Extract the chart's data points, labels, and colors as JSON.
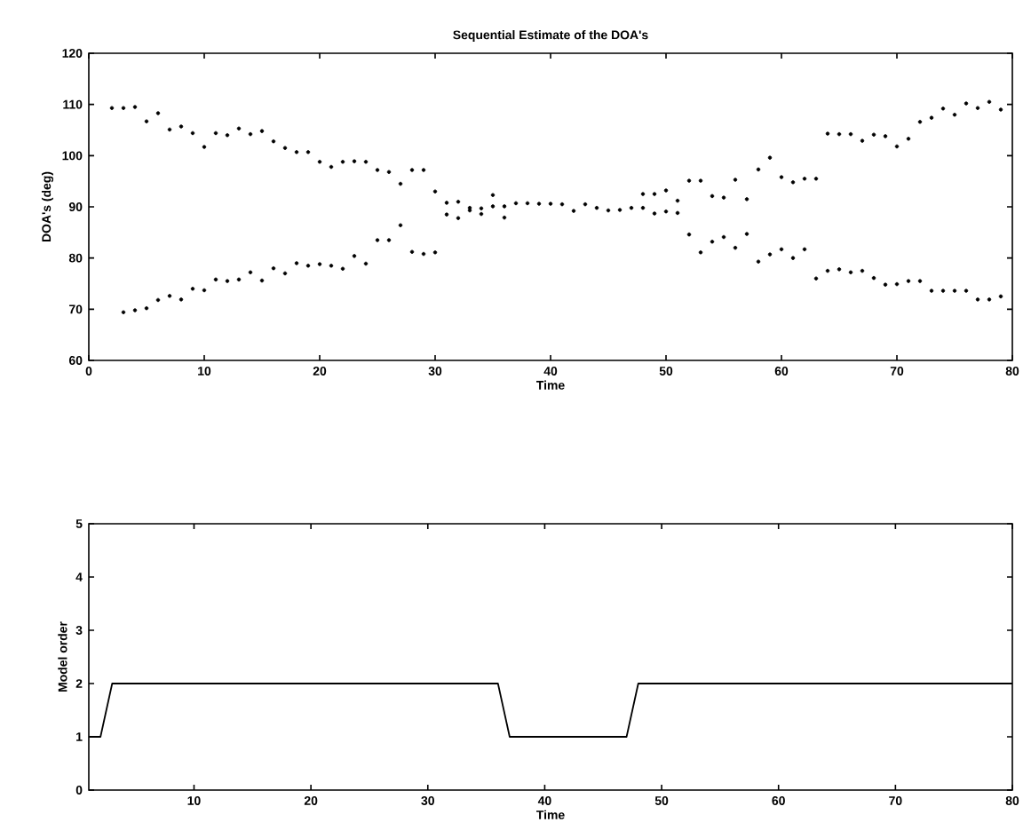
{
  "chart_data": [
    {
      "type": "scatter",
      "title": "Sequential Estimate of the DOA's",
      "xlabel": "Time",
      "ylabel": "DOA's (deg)",
      "xlim": [
        0,
        80
      ],
      "ylim": [
        60,
        120
      ],
      "xticks": [
        0,
        10,
        20,
        30,
        40,
        50,
        60,
        70,
        80
      ],
      "yticks": [
        60,
        70,
        80,
        90,
        100,
        110,
        120
      ],
      "marker": "circle",
      "grid": false,
      "x": [
        2,
        3,
        4,
        5,
        6,
        7,
        8,
        9,
        10,
        11,
        12,
        13,
        14,
        15,
        16,
        17,
        18,
        19,
        20,
        21,
        22,
        23,
        24,
        25,
        26,
        27,
        28,
        29,
        30,
        31,
        32,
        33,
        34,
        35,
        36,
        37,
        38,
        39,
        40,
        41,
        42,
        43,
        44,
        45,
        46,
        47,
        48,
        49,
        50,
        51,
        52,
        53,
        54,
        55,
        56,
        57,
        58,
        59,
        60,
        61,
        62,
        63,
        64,
        65,
        66,
        67,
        68,
        69,
        70,
        71,
        72,
        73,
        74,
        75,
        76,
        77,
        78,
        79
      ],
      "series": [
        {
          "color": "#000000",
          "values": [
            109.3,
            109.3,
            109.5,
            106.7,
            108.3,
            105.1,
            105.7,
            104.4,
            101.7,
            104.4,
            104.0,
            105.3,
            104.2,
            104.8,
            102.8,
            101.5,
            100.7,
            100.7,
            98.8,
            97.8,
            98.8,
            98.9,
            98.8,
            97.2,
            96.8,
            94.5,
            97.2,
            97.2,
            93.0,
            90.8,
            91.0,
            89.8,
            89.7,
            92.3,
            90.1,
            90.7,
            90.7,
            90.6,
            90.6,
            90.5,
            89.2,
            90.5,
            89.8,
            89.3,
            89.4,
            89.8,
            92.5,
            92.5,
            93.2,
            91.2,
            95.1,
            95.1,
            92.1,
            91.8,
            95.3,
            91.5,
            97.3,
            99.6,
            95.8,
            94.8,
            95.5,
            95.5,
            104.3,
            104.2,
            104.2,
            102.9,
            104.1,
            103.8,
            101.8,
            103.3,
            106.6,
            107.4,
            109.2,
            108.0,
            110.2,
            109.3,
            110.5,
            109.0
          ]
        },
        {
          "color": "#000000",
          "values": [
            null,
            69.4,
            69.8,
            70.2,
            71.8,
            72.6,
            71.9,
            74.0,
            73.7,
            75.8,
            75.5,
            75.8,
            77.2,
            75.6,
            78.0,
            77.0,
            79.0,
            78.5,
            78.8,
            78.5,
            77.9,
            80.4,
            78.9,
            83.5,
            83.5,
            86.4,
            81.2,
            80.8,
            81.1,
            88.5,
            87.8,
            89.3,
            88.6,
            90.1,
            87.9,
            null,
            null,
            null,
            null,
            null,
            null,
            null,
            null,
            null,
            null,
            null,
            89.8,
            88.7,
            89.1,
            88.8,
            84.6,
            81.1,
            83.2,
            84.1,
            82.0,
            84.7,
            79.3,
            80.7,
            81.7,
            80.0,
            81.7,
            76.0,
            77.5,
            77.8,
            77.2,
            77.5,
            76.1,
            74.8,
            74.9,
            75.5,
            75.5,
            73.6,
            73.6,
            73.6,
            73.6,
            71.9,
            71.9,
            72.5
          ]
        }
      ]
    },
    {
      "type": "line",
      "xlabel": "Time",
      "ylabel": "Model order",
      "xlim": [
        1,
        80
      ],
      "ylim": [
        0,
        5
      ],
      "xticks": [
        10,
        20,
        30,
        40,
        50,
        60,
        70,
        80
      ],
      "yticks": [
        0,
        1,
        2,
        3,
        4,
        5
      ],
      "marker": "none",
      "line_style": "solid",
      "grid": false,
      "x": [
        1,
        2,
        3,
        36,
        37,
        47,
        48,
        80
      ],
      "series": [
        {
          "color": "#000000",
          "values": [
            1,
            1,
            2,
            2,
            1,
            1,
            2,
            2
          ]
        }
      ]
    }
  ]
}
